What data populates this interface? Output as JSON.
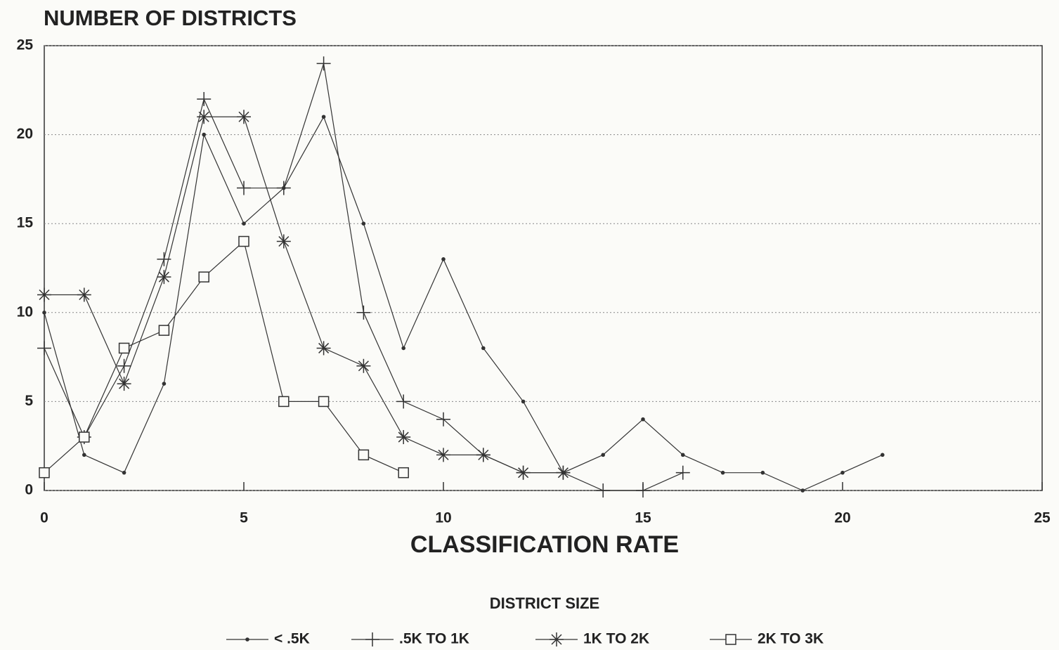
{
  "chart_data": {
    "type": "line",
    "title": "NUMBER OF DISTRICTS",
    "x_label": "CLASSIFICATION RATE",
    "legend_title": "DISTRICT SIZE",
    "legend_position": "bottom",
    "x": [
      0,
      1,
      2,
      3,
      4,
      5,
      6,
      7,
      8,
      9,
      10,
      11,
      12,
      13,
      14,
      15,
      16,
      17,
      18,
      19,
      20,
      21
    ],
    "series": [
      {
        "name": "< .5K",
        "color": "#333333",
        "marker": "dot",
        "values": [
          10,
          2,
          1,
          6,
          20,
          15,
          17,
          21,
          15,
          8,
          13,
          8,
          5,
          1,
          2,
          4,
          2,
          1,
          1,
          0,
          1,
          2
        ]
      },
      {
        "name": ".5K TO 1K",
        "color": "#333333",
        "marker": "plus",
        "values": [
          8,
          3,
          7,
          13,
          22,
          17,
          17,
          24,
          10,
          5,
          4,
          2,
          1,
          1,
          0,
          0,
          1,
          null,
          null,
          null,
          null,
          null
        ]
      },
      {
        "name": "1K TO 2K",
        "color": "#333333",
        "marker": "asterisk",
        "values": [
          11,
          11,
          6,
          12,
          21,
          21,
          14,
          8,
          7,
          3,
          2,
          2,
          1,
          1,
          null,
          null,
          null,
          null,
          null,
          null,
          null,
          null
        ]
      },
      {
        "name": "2K TO 3K",
        "color": "#333333",
        "marker": "square",
        "values": [
          1,
          3,
          8,
          9,
          12,
          14,
          5,
          5,
          2,
          1,
          null,
          null,
          null,
          null,
          null,
          null,
          null,
          null,
          null,
          null,
          null,
          null
        ]
      }
    ],
    "xlim": [
      0,
      25
    ],
    "xticks": [
      0,
      5,
      10,
      15,
      20,
      25
    ],
    "ylim": [
      0,
      25
    ],
    "yticks": [
      0,
      5,
      10,
      15,
      20,
      25
    ],
    "grid": true
  }
}
